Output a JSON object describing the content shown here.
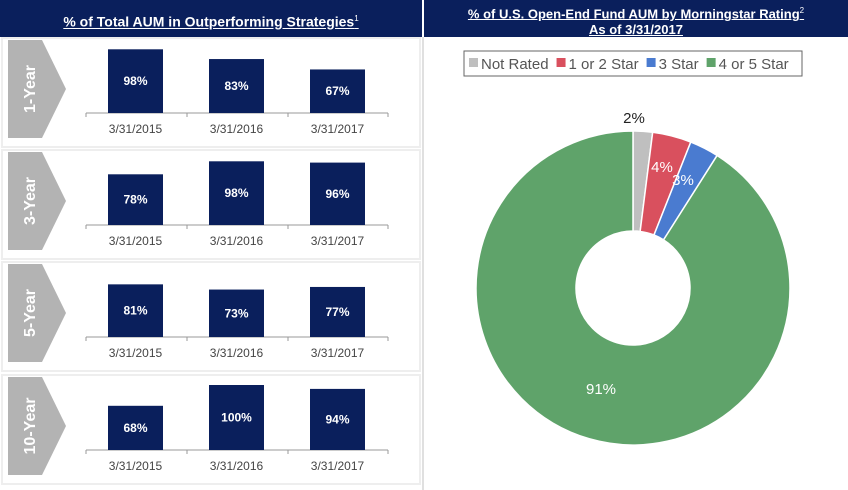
{
  "left_panel": {
    "title": "% of Total AUM in Outperforming Strategies",
    "title_footnote": "1"
  },
  "right_panel": {
    "title": "% of U.S. Open-End Fund AUM by Morningstar Rating",
    "title_footnote": "2",
    "subtitle": "As of 3/31/2017"
  },
  "chart_data": [
    {
      "type": "bar",
      "title": "1-Year",
      "categories": [
        "3/31/2015",
        "3/31/2016",
        "3/31/2017"
      ],
      "values": [
        98,
        83,
        67
      ],
      "labels": [
        "98%",
        "83%",
        "67%"
      ],
      "ylim": [
        0,
        100
      ],
      "color": "#0a1f5c"
    },
    {
      "type": "bar",
      "title": "3-Year",
      "categories": [
        "3/31/2015",
        "3/31/2016",
        "3/31/2017"
      ],
      "values": [
        78,
        98,
        96
      ],
      "labels": [
        "78%",
        "98%",
        "96%"
      ],
      "ylim": [
        0,
        100
      ],
      "color": "#0a1f5c"
    },
    {
      "type": "bar",
      "title": "5-Year",
      "categories": [
        "3/31/2015",
        "3/31/2016",
        "3/31/2017"
      ],
      "values": [
        81,
        73,
        77
      ],
      "labels": [
        "81%",
        "73%",
        "77%"
      ],
      "ylim": [
        0,
        100
      ],
      "color": "#0a1f5c"
    },
    {
      "type": "bar",
      "title": "10-Year",
      "categories": [
        "3/31/2015",
        "3/31/2016",
        "3/31/2017"
      ],
      "values": [
        68,
        100,
        94
      ],
      "labels": [
        "68%",
        "100%",
        "94%"
      ],
      "ylim": [
        0,
        100
      ],
      "color": "#0a1f5c"
    },
    {
      "type": "pie",
      "variant": "donut",
      "legend_position": "top",
      "slices": [
        {
          "name": "Not Rated",
          "value": 2,
          "label": "2%",
          "color": "#bfbfbf"
        },
        {
          "name": "1 or 2 Star",
          "value": 4,
          "label": "4%",
          "color": "#d9505e"
        },
        {
          "name": "3 Star",
          "value": 3,
          "label": "3%",
          "color": "#4a7bd0"
        },
        {
          "name": "4 or 5 Star",
          "value": 91,
          "label": "91%",
          "color": "#5fa36a"
        }
      ]
    }
  ]
}
